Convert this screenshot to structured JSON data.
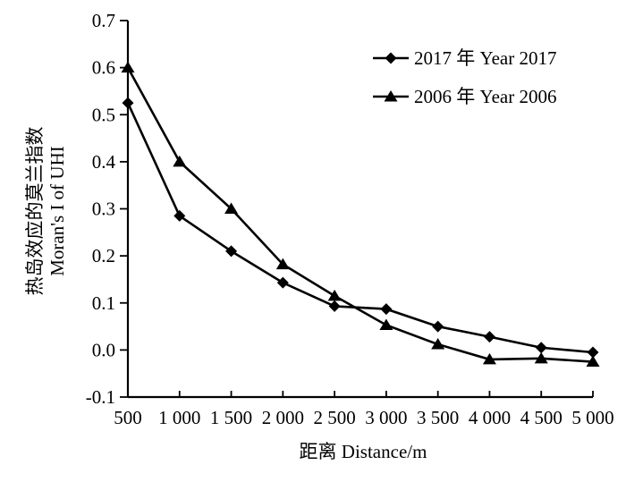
{
  "figure": {
    "background": "#ffffff",
    "ink_color": "#000000"
  },
  "chart_data": {
    "type": "line",
    "title": "",
    "xlabel": "距离 Distance/m",
    "ylabel_lines": [
      "热岛效应的莫兰指数",
      "Moran's I of UHI"
    ],
    "x": [
      500,
      1000,
      1500,
      2000,
      2500,
      3000,
      3500,
      4000,
      4500,
      5000
    ],
    "x_tick_labels": [
      "500",
      "1 000",
      "1 500",
      "2 000",
      "2 500",
      "3 000",
      "3 500",
      "4 000",
      "4 500",
      "5 000"
    ],
    "y_ticks": [
      0.7,
      0.6,
      0.5,
      0.4,
      0.3,
      0.2,
      0.1,
      0.0,
      -0.1
    ],
    "y_tick_labels": [
      "0.7",
      "0.6",
      "0.5",
      "0.4",
      "0.3",
      "0.2",
      "0.1",
      "0.0",
      "-0.1"
    ],
    "xlim": [
      500,
      5000
    ],
    "ylim": [
      -0.1,
      0.7
    ],
    "grid": false,
    "legend_position": "inside-top-right",
    "series": [
      {
        "name": "2017 年 Year 2017",
        "marker": "diamond",
        "color": "#000000",
        "values": [
          0.525,
          0.285,
          0.21,
          0.143,
          0.093,
          0.087,
          0.05,
          0.028,
          0.005,
          -0.005
        ]
      },
      {
        "name": "2006 年 Year 2006",
        "marker": "triangle",
        "color": "#000000",
        "values": [
          0.6,
          0.4,
          0.3,
          0.182,
          0.115,
          0.053,
          0.012,
          -0.02,
          -0.018,
          -0.025
        ]
      }
    ]
  }
}
